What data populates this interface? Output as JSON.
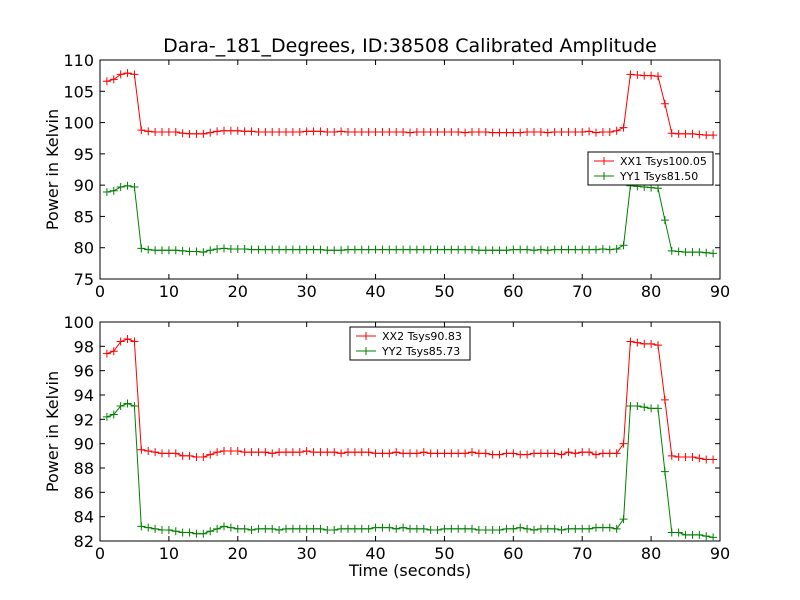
{
  "title": "Dara-_181_Degrees, ID:38508 Calibrated Amplitude",
  "colors": {
    "red": "#ff0000",
    "green": "#008000"
  },
  "chart_data": [
    {
      "type": "line",
      "ylabel": "Power in Kelvin",
      "xlabel": "",
      "xlim": [
        0,
        90
      ],
      "ylim": [
        75,
        110
      ],
      "xticks": [
        0,
        10,
        20,
        30,
        40,
        50,
        60,
        70,
        80,
        90
      ],
      "yticks": [
        75,
        80,
        85,
        90,
        95,
        100,
        105,
        110
      ],
      "legend_position": "center-right",
      "series": [
        {
          "name": "XX1 Tsys100.05",
          "color": "#ff0000",
          "x": [
            1,
            2,
            3,
            4,
            5,
            6,
            7,
            8,
            9,
            10,
            11,
            12,
            13,
            14,
            15,
            16,
            17,
            18,
            19,
            20,
            21,
            22,
            23,
            24,
            25,
            26,
            27,
            28,
            29,
            30,
            31,
            32,
            33,
            34,
            35,
            36,
            37,
            38,
            39,
            40,
            41,
            42,
            43,
            44,
            45,
            46,
            47,
            48,
            49,
            50,
            51,
            52,
            53,
            54,
            55,
            56,
            57,
            58,
            59,
            60,
            61,
            62,
            63,
            64,
            65,
            66,
            67,
            68,
            69,
            70,
            71,
            72,
            73,
            74,
            75,
            76,
            77,
            78,
            79,
            80,
            81,
            82,
            83,
            84,
            85,
            86,
            87,
            88,
            89
          ],
          "y": [
            106.6,
            106.9,
            107.7,
            107.9,
            107.7,
            98.8,
            98.6,
            98.5,
            98.5,
            98.5,
            98.5,
            98.3,
            98.2,
            98.2,
            98.2,
            98.4,
            98.6,
            98.7,
            98.7,
            98.7,
            98.6,
            98.6,
            98.5,
            98.5,
            98.5,
            98.5,
            98.5,
            98.5,
            98.5,
            98.6,
            98.6,
            98.6,
            98.5,
            98.5,
            98.6,
            98.5,
            98.5,
            98.5,
            98.5,
            98.5,
            98.5,
            98.5,
            98.5,
            98.5,
            98.4,
            98.5,
            98.5,
            98.5,
            98.5,
            98.5,
            98.5,
            98.5,
            98.4,
            98.5,
            98.5,
            98.5,
            98.4,
            98.4,
            98.4,
            98.4,
            98.4,
            98.5,
            98.5,
            98.5,
            98.4,
            98.5,
            98.5,
            98.5,
            98.5,
            98.5,
            98.6,
            98.4,
            98.5,
            98.5,
            98.7,
            99.2,
            107.7,
            107.6,
            107.5,
            107.5,
            107.4,
            103.0,
            98.3,
            98.2,
            98.2,
            98.2,
            98.1,
            98.0,
            98.0
          ]
        },
        {
          "name": "YY1 Tsys81.50",
          "color": "#008000",
          "x": [
            1,
            2,
            3,
            4,
            5,
            6,
            7,
            8,
            9,
            10,
            11,
            12,
            13,
            14,
            15,
            16,
            17,
            18,
            19,
            20,
            21,
            22,
            23,
            24,
            25,
            26,
            27,
            28,
            29,
            30,
            31,
            32,
            33,
            34,
            35,
            36,
            37,
            38,
            39,
            40,
            41,
            42,
            43,
            44,
            45,
            46,
            47,
            48,
            49,
            50,
            51,
            52,
            53,
            54,
            55,
            56,
            57,
            58,
            59,
            60,
            61,
            62,
            63,
            64,
            65,
            66,
            67,
            68,
            69,
            70,
            71,
            72,
            73,
            74,
            75,
            76,
            77,
            78,
            79,
            80,
            81,
            82,
            83,
            84,
            85,
            86,
            87,
            88,
            89
          ],
          "y": [
            88.9,
            89.1,
            89.7,
            89.9,
            89.7,
            79.9,
            79.7,
            79.6,
            79.6,
            79.6,
            79.6,
            79.5,
            79.4,
            79.4,
            79.3,
            79.6,
            79.8,
            79.9,
            79.8,
            79.8,
            79.8,
            79.7,
            79.7,
            79.7,
            79.7,
            79.7,
            79.7,
            79.7,
            79.7,
            79.7,
            79.7,
            79.7,
            79.6,
            79.6,
            79.6,
            79.7,
            79.7,
            79.7,
            79.7,
            79.7,
            79.7,
            79.7,
            79.7,
            79.7,
            79.7,
            79.7,
            79.7,
            79.7,
            79.7,
            79.7,
            79.7,
            79.7,
            79.7,
            79.7,
            79.6,
            79.6,
            79.6,
            79.6,
            79.6,
            79.7,
            79.7,
            79.7,
            79.6,
            79.7,
            79.6,
            79.7,
            79.7,
            79.7,
            79.7,
            79.7,
            79.7,
            79.7,
            79.8,
            79.7,
            79.8,
            80.4,
            89.9,
            89.8,
            89.7,
            89.6,
            89.5,
            84.4,
            79.5,
            79.4,
            79.3,
            79.3,
            79.3,
            79.2,
            79.1
          ]
        }
      ]
    },
    {
      "type": "line",
      "ylabel": "Power in Kelvin",
      "xlabel": "Time (seconds)",
      "xlim": [
        0,
        90
      ],
      "ylim": [
        82,
        100
      ],
      "xticks": [
        0,
        10,
        20,
        30,
        40,
        50,
        60,
        70,
        80,
        90
      ],
      "yticks": [
        82,
        84,
        86,
        88,
        90,
        92,
        94,
        96,
        98,
        100
      ],
      "legend_position": "top-center",
      "series": [
        {
          "name": "XX2 Tsys90.83",
          "color": "#ff0000",
          "x": [
            1,
            2,
            3,
            4,
            5,
            6,
            7,
            8,
            9,
            10,
            11,
            12,
            13,
            14,
            15,
            16,
            17,
            18,
            19,
            20,
            21,
            22,
            23,
            24,
            25,
            26,
            27,
            28,
            29,
            30,
            31,
            32,
            33,
            34,
            35,
            36,
            37,
            38,
            39,
            40,
            41,
            42,
            43,
            44,
            45,
            46,
            47,
            48,
            49,
            50,
            51,
            52,
            53,
            54,
            55,
            56,
            57,
            58,
            59,
            60,
            61,
            62,
            63,
            64,
            65,
            66,
            67,
            68,
            69,
            70,
            71,
            72,
            73,
            74,
            75,
            76,
            77,
            78,
            79,
            80,
            81,
            82,
            83,
            84,
            85,
            86,
            87,
            88,
            89
          ],
          "y": [
            97.4,
            97.6,
            98.4,
            98.6,
            98.4,
            89.5,
            89.4,
            89.3,
            89.2,
            89.2,
            89.2,
            89.0,
            89.0,
            88.9,
            88.9,
            89.1,
            89.3,
            89.4,
            89.4,
            89.4,
            89.3,
            89.3,
            89.3,
            89.3,
            89.2,
            89.3,
            89.3,
            89.3,
            89.3,
            89.4,
            89.3,
            89.3,
            89.3,
            89.3,
            89.2,
            89.3,
            89.3,
            89.3,
            89.3,
            89.2,
            89.2,
            89.2,
            89.3,
            89.2,
            89.2,
            89.2,
            89.3,
            89.2,
            89.2,
            89.2,
            89.2,
            89.2,
            89.2,
            89.3,
            89.2,
            89.2,
            89.1,
            89.1,
            89.2,
            89.2,
            89.1,
            89.1,
            89.2,
            89.2,
            89.2,
            89.2,
            89.1,
            89.3,
            89.2,
            89.3,
            89.3,
            89.1,
            89.2,
            89.2,
            89.2,
            90.0,
            98.4,
            98.3,
            98.2,
            98.2,
            98.1,
            93.6,
            89.0,
            88.9,
            88.9,
            88.9,
            88.8,
            88.7,
            88.7
          ]
        },
        {
          "name": "YY2 Tsys85.73",
          "color": "#008000",
          "x": [
            1,
            2,
            3,
            4,
            5,
            6,
            7,
            8,
            9,
            10,
            11,
            12,
            13,
            14,
            15,
            16,
            17,
            18,
            19,
            20,
            21,
            22,
            23,
            24,
            25,
            26,
            27,
            28,
            29,
            30,
            31,
            32,
            33,
            34,
            35,
            36,
            37,
            38,
            39,
            40,
            41,
            42,
            43,
            44,
            45,
            46,
            47,
            48,
            49,
            50,
            51,
            52,
            53,
            54,
            55,
            56,
            57,
            58,
            59,
            60,
            61,
            62,
            63,
            64,
            65,
            66,
            67,
            68,
            69,
            70,
            71,
            72,
            73,
            74,
            75,
            76,
            77,
            78,
            79,
            80,
            81,
            82,
            83,
            84,
            85,
            86,
            87,
            88,
            89
          ],
          "y": [
            92.2,
            92.4,
            93.1,
            93.3,
            93.1,
            83.2,
            83.1,
            83.0,
            82.9,
            82.9,
            82.8,
            82.7,
            82.7,
            82.6,
            82.6,
            82.8,
            83.0,
            83.2,
            83.1,
            83.0,
            83.0,
            82.9,
            83.0,
            83.0,
            83.0,
            82.9,
            83.0,
            83.0,
            83.0,
            83.0,
            83.0,
            83.0,
            82.9,
            82.9,
            83.0,
            83.0,
            83.0,
            83.0,
            83.0,
            83.1,
            83.1,
            83.1,
            83.0,
            83.1,
            83.0,
            83.0,
            83.0,
            82.9,
            82.9,
            83.0,
            83.0,
            83.0,
            83.0,
            83.0,
            82.9,
            82.9,
            82.9,
            82.9,
            83.0,
            83.0,
            83.1,
            83.0,
            82.9,
            83.0,
            83.0,
            83.0,
            82.9,
            83.0,
            83.0,
            83.0,
            83.0,
            83.1,
            83.1,
            83.1,
            83.0,
            83.8,
            93.1,
            93.1,
            93.0,
            92.9,
            92.9,
            87.7,
            82.7,
            82.7,
            82.5,
            82.5,
            82.5,
            82.4,
            82.3
          ]
        }
      ]
    }
  ]
}
